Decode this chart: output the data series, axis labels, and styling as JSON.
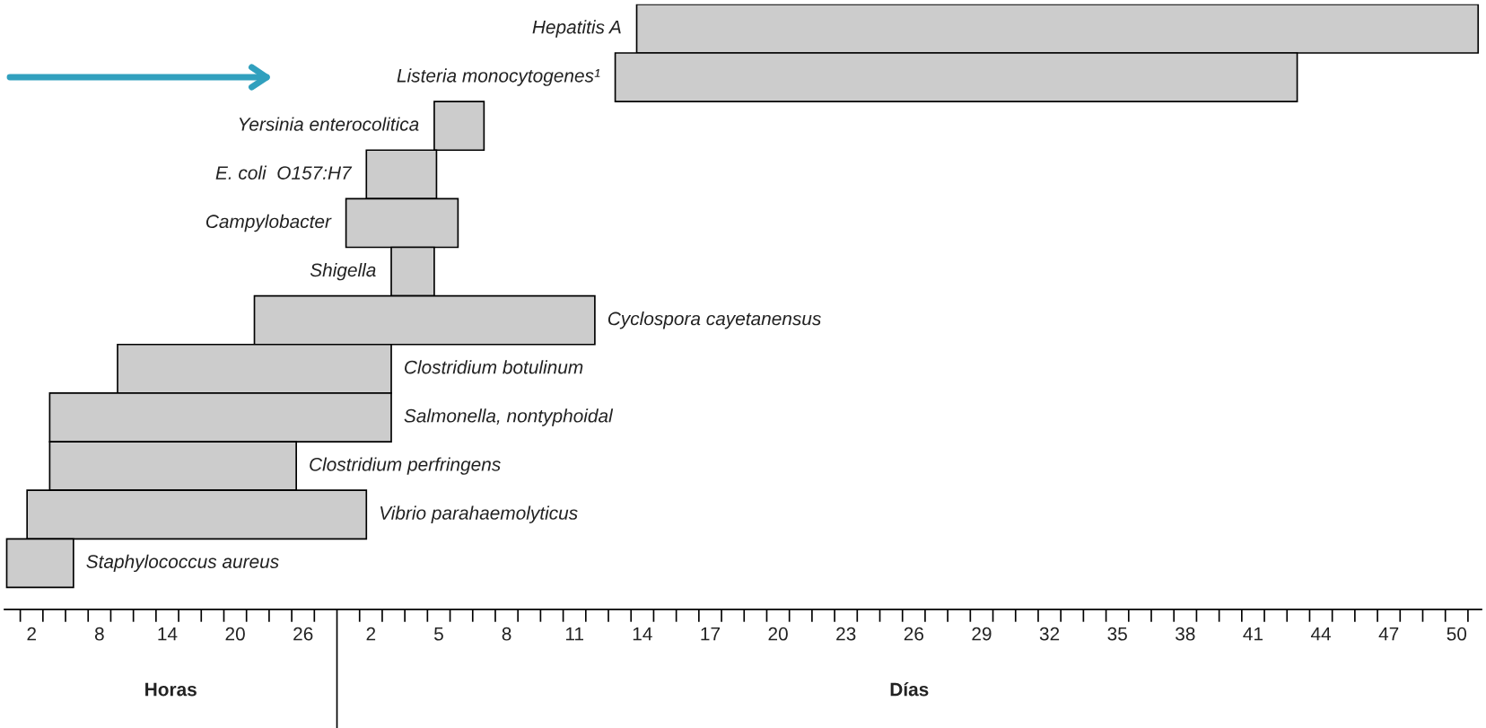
{
  "chart_data": {
    "type": "bar",
    "orientation": "horizontal",
    "categories": [
      "Hepatitis A",
      "Listeria monocytogenes¹",
      "Yersinia enterocolitica",
      "E. coli  O157:H7",
      "Campylobacter",
      "Shigella",
      "Cyclospora cayetanensus",
      "Clostridium botulinum",
      "Salmonella, nontyphoidal",
      "Clostridium perfringens",
      "Vibrio parahaemolyticus",
      "Staphylococcus aureus"
    ],
    "base": [
      55.5,
      53.6,
      37.6,
      31.6,
      29.8,
      33.8,
      21.7,
      9.6,
      3.6,
      3.6,
      1.6,
      -0.2
    ],
    "values": [
      74.4,
      60.3,
      4.4,
      6.2,
      9.9,
      3.8,
      30.1,
      24.2,
      30.2,
      21.8,
      30.0,
      5.9
    ],
    "color": "#cccccc",
    "xlim": [
      -0.4,
      130.2
    ],
    "xticks": [
      2,
      8,
      14,
      20,
      26
    ],
    "x2lim": [
      -14.2,
      51.1
    ],
    "x2ticks": [
      2,
      5,
      8,
      11,
      14,
      17,
      20,
      23,
      26,
      29,
      32,
      35,
      38,
      41,
      44,
      47,
      50
    ],
    "annotations": [
      "Horas",
      "Días"
    ],
    "grid": false
  }
}
